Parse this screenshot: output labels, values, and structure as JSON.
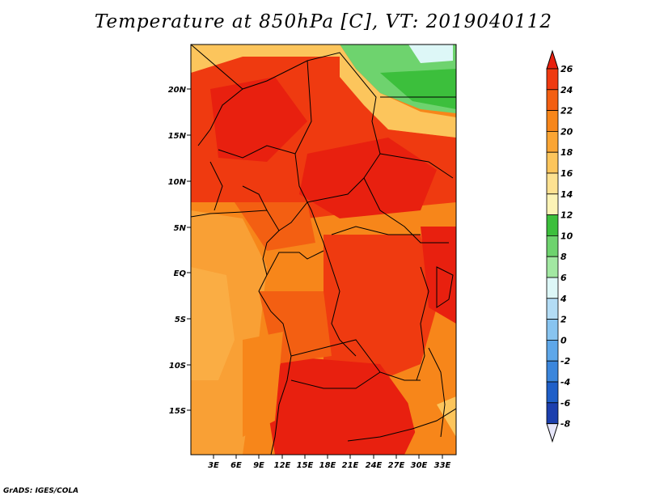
{
  "title": "Temperature at 850hPa [C], VT: 2019040112",
  "footer": "GrADS: IGES/COLA",
  "map": {
    "lat_labels": [
      "20N",
      "15N",
      "10N",
      "5N",
      "EQ",
      "5S",
      "10S",
      "15S"
    ],
    "lon_labels": [
      "3E",
      "6E",
      "9E",
      "12E",
      "15E",
      "18E",
      "21E",
      "24E",
      "27E",
      "30E",
      "33E"
    ]
  },
  "colorbar": {
    "labels": [
      "26",
      "24",
      "22",
      "20",
      "18",
      "16",
      "14",
      "12",
      "10",
      "8",
      "6",
      "4",
      "2",
      "0",
      "-2",
      "-4",
      "-6",
      "-8"
    ],
    "colors": [
      "#e8200f",
      "#ef3a10",
      "#f35f12",
      "#f7861a",
      "#faa534",
      "#fcc55c",
      "#fde191",
      "#fcf3b6",
      "#3cbf3c",
      "#6ed36e",
      "#a2e8a2",
      "#ddf7f7",
      "#b3dcf5",
      "#88c4f0",
      "#5ea7e9",
      "#3b86dc",
      "#1f5fc8",
      "#1c3fae",
      "#142b86"
    ]
  }
}
